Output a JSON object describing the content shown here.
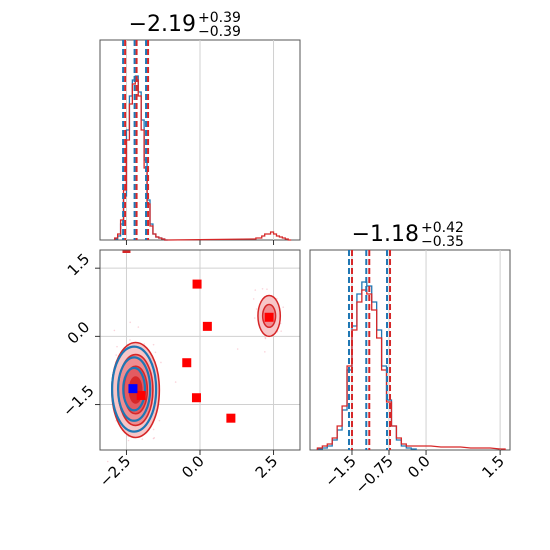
{
  "chart_data": [
    {
      "id": "x_marginal",
      "type": "histogram",
      "title_main": "−2.19",
      "title_sup": "+0.39",
      "title_sub": "−0.39",
      "xlim": [
        -3.4,
        3.4
      ],
      "grid": true,
      "median": -2.19,
      "quantiles": [
        -2.58,
        -1.8
      ],
      "series": [
        {
          "color": "#1f77b4",
          "bins_x": [
            -2.9,
            -2.8,
            -2.7,
            -2.6,
            -2.5,
            -2.4,
            -2.3,
            -2.2,
            -2.1,
            -2.0,
            -1.9,
            -1.8,
            -1.7,
            -1.6,
            -1.5,
            -1.4,
            -1.3,
            -1.2
          ],
          "counts": [
            0.005,
            0.02,
            0.08,
            0.22,
            0.55,
            0.72,
            0.8,
            0.82,
            0.74,
            0.6,
            0.4,
            0.2,
            0.08,
            0.03,
            0.015,
            0.01,
            0.005,
            0
          ]
        },
        {
          "color": "#d62728",
          "bins_x": [
            -2.9,
            -2.8,
            -2.7,
            -2.6,
            -2.5,
            -2.4,
            -2.3,
            -2.2,
            -2.1,
            -2.0,
            -1.9,
            -1.8,
            -1.7,
            -1.6,
            -1.5,
            -1.4,
            -1.3,
            -1.2,
            1.8,
            1.9,
            2.0,
            2.1,
            2.2,
            2.3,
            2.4,
            2.5,
            2.6,
            2.7,
            2.8,
            2.9,
            3.0
          ],
          "counts": [
            0.01,
            0.03,
            0.1,
            0.25,
            0.5,
            0.68,
            0.78,
            0.8,
            0.72,
            0.55,
            0.36,
            0.18,
            0.07,
            0.03,
            0.015,
            0.01,
            0.005,
            0,
            0.005,
            0.01,
            0.01,
            0.02,
            0.03,
            0.03,
            0.04,
            0.03,
            0.02,
            0.015,
            0.01,
            0.005,
            0
          ]
        }
      ]
    },
    {
      "id": "y_marginal",
      "type": "histogram",
      "title_main": "−1.18",
      "title_sup": "+0.42",
      "title_sub": "−0.35",
      "xlim": [
        -2.35,
        1.7
      ],
      "xticks": [
        -1.5,
        -0.75,
        0.0,
        1.5
      ],
      "xtick_labels": [
        "−1.5",
        "−0.75",
        "0.0",
        "1.5"
      ],
      "grid": true,
      "median": -1.18,
      "quantiles": [
        -1.53,
        -0.76
      ],
      "series": [
        {
          "color": "#1f77b4",
          "bins_x": [
            -2.2,
            -2.1,
            -2.0,
            -1.9,
            -1.8,
            -1.7,
            -1.6,
            -1.5,
            -1.4,
            -1.3,
            -1.2,
            -1.1,
            -1.0,
            -0.9,
            -0.8,
            -0.7,
            -0.6,
            -0.5,
            -0.4,
            -0.3
          ],
          "counts": [
            0.005,
            0.01,
            0.02,
            0.05,
            0.1,
            0.2,
            0.4,
            0.62,
            0.78,
            0.84,
            0.82,
            0.74,
            0.6,
            0.42,
            0.25,
            0.12,
            0.05,
            0.02,
            0.01,
            0.005
          ]
        },
        {
          "color": "#d62728",
          "bins_x": [
            -2.2,
            -2.1,
            -2.0,
            -1.9,
            -1.8,
            -1.7,
            -1.6,
            -1.5,
            -1.4,
            -1.3,
            -1.2,
            -1.1,
            -1.0,
            -0.9,
            -0.8,
            -0.7,
            -0.6,
            -0.5,
            -0.4,
            -0.3,
            -0.2,
            0.0,
            0.3,
            0.6,
            0.9,
            1.2,
            1.5
          ],
          "counts": [
            0.01,
            0.02,
            0.03,
            0.06,
            0.12,
            0.22,
            0.42,
            0.6,
            0.74,
            0.8,
            0.78,
            0.7,
            0.56,
            0.4,
            0.24,
            0.12,
            0.06,
            0.03,
            0.02,
            0.02,
            0.02,
            0.02,
            0.015,
            0.015,
            0.01,
            0.01,
            0.005
          ]
        }
      ]
    },
    {
      "id": "joint",
      "type": "scatter_contour",
      "xlim": [
        -3.4,
        3.4
      ],
      "ylim": [
        -2.5,
        1.9
      ],
      "xticks": [
        -2.5,
        0.0,
        2.5
      ],
      "xtick_labels": [
        "−2.5",
        "0.0",
        "2.5"
      ],
      "yticks": [
        -1.5,
        0.0,
        1.5
      ],
      "ytick_labels": [
        "−1.5",
        "0.0",
        "1.5"
      ],
      "grid": true,
      "main_cluster": {
        "cx": -2.19,
        "cy": -1.18,
        "rx": [
          0.85,
          0.62,
          0.42,
          0.22
        ],
        "ry": [
          1.1,
          0.82,
          0.55,
          0.3
        ]
      },
      "secondary_cluster": {
        "cx": 2.35,
        "cy": 0.45,
        "rx": [
          0.38,
          0.22
        ],
        "ry": [
          0.45,
          0.25
        ]
      },
      "red_markers": [
        {
          "x": -0.1,
          "y": 1.15
        },
        {
          "x": 0.25,
          "y": 0.22
        },
        {
          "x": -0.45,
          "y": -0.58
        },
        {
          "x": -0.12,
          "y": -1.35
        },
        {
          "x": 1.05,
          "y": -1.8
        },
        {
          "x": 2.35,
          "y": 0.42
        },
        {
          "x": -2.0,
          "y": -1.3
        }
      ],
      "blue_markers": [
        {
          "x": -2.28,
          "y": -1.15
        }
      ],
      "colors": {
        "blue": "#1f77b4",
        "red": "#d62728",
        "marker_red": "#ff0000",
        "marker_blue": "#0000ff"
      }
    }
  ]
}
